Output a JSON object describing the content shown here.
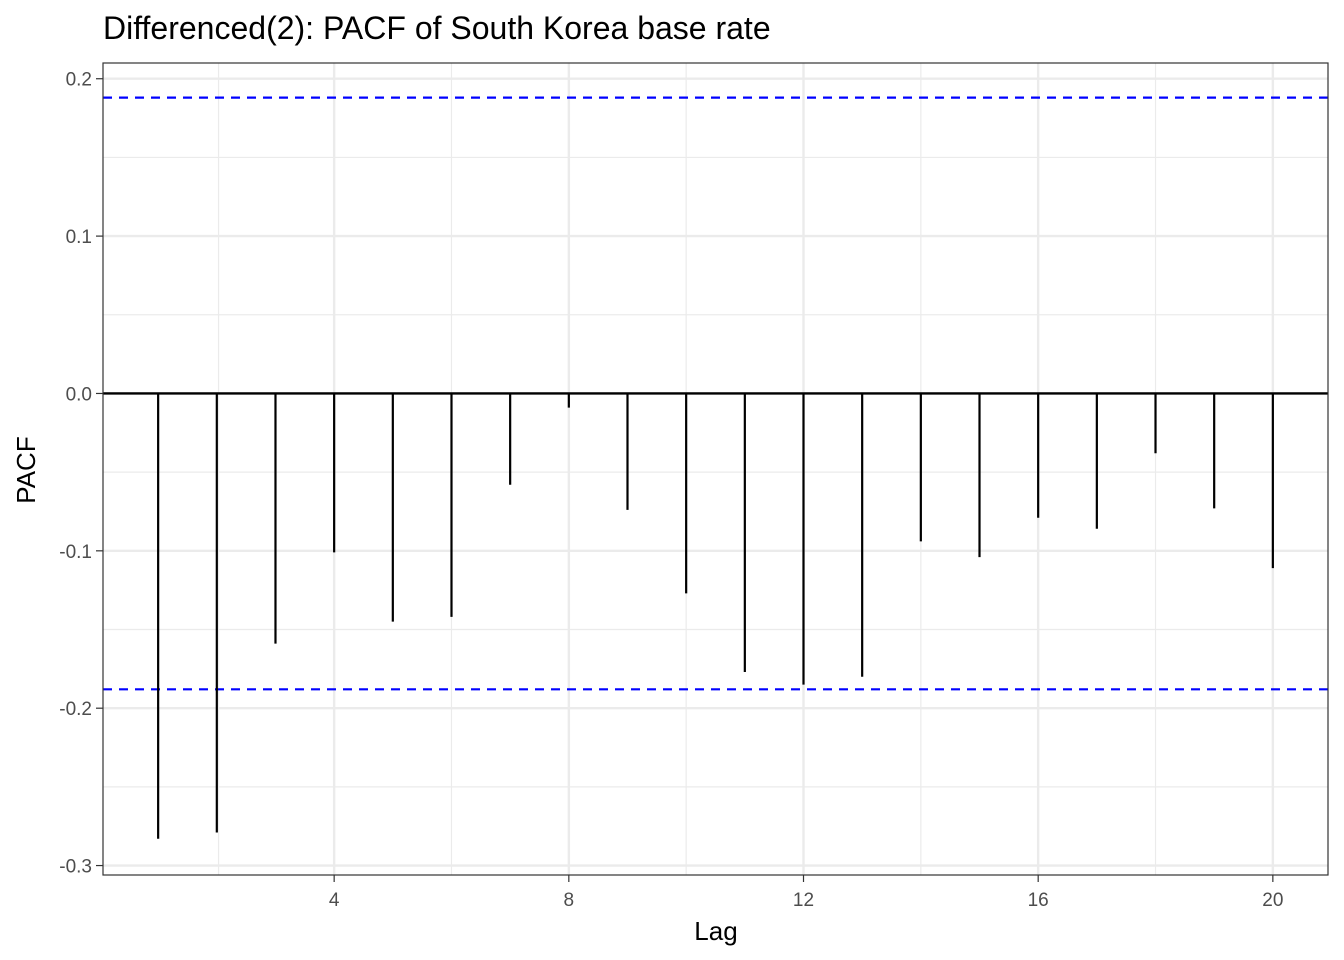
{
  "chart_data": {
    "type": "bar",
    "title": "Differenced(2): PACF of South Korea base rate",
    "xlabel": "Lag",
    "ylabel": "PACF",
    "x": [
      1,
      2,
      3,
      4,
      5,
      6,
      7,
      8,
      9,
      10,
      11,
      12,
      13,
      14,
      15,
      16,
      17,
      18,
      19,
      20
    ],
    "values": [
      -0.283,
      -0.279,
      -0.159,
      -0.101,
      -0.145,
      -0.142,
      -0.058,
      -0.009,
      -0.074,
      -0.127,
      -0.177,
      -0.185,
      -0.18,
      -0.094,
      -0.104,
      -0.079,
      -0.086,
      -0.038,
      -0.073,
      -0.111
    ],
    "xlim": [
      0.06,
      20.94
    ],
    "ylim": [
      -0.306,
      0.21
    ],
    "xticks": [
      4,
      8,
      12,
      16,
      20
    ],
    "xtick_labels": [
      "4",
      "8",
      "12",
      "16",
      "20"
    ],
    "yticks": [
      -0.3,
      -0.2,
      -0.1,
      0.0,
      0.1,
      0.2
    ],
    "ytick_labels": [
      "-0.3",
      "-0.2",
      "-0.1",
      "0.0",
      "0.1",
      "0.2"
    ],
    "confidence_bounds": [
      0.188,
      -0.188
    ],
    "grid": true,
    "colors": {
      "bars": "#000000",
      "confidence": "#0000ff",
      "zero_line": "#000000",
      "grid": "#ebebeb",
      "panel_border": "#333333"
    }
  }
}
